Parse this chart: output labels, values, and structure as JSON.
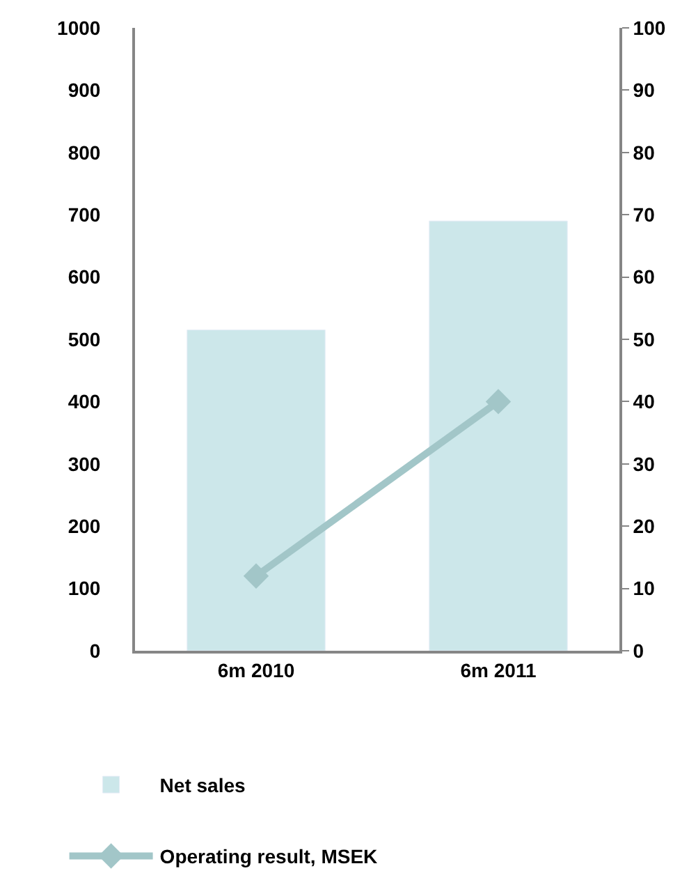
{
  "chart_data": {
    "type": "bar",
    "categories": [
      "6m 2010",
      "6m 2011"
    ],
    "series": [
      {
        "name": "Net sales",
        "color": "#cce7ea",
        "values": [
          515,
          690
        ]
      },
      {
        "name": "Operating result, MSEK",
        "type": "line",
        "axis": "y2",
        "color": "#a2c6c8",
        "marker": "diamond",
        "line_style": "solid",
        "values": [
          12,
          40
        ]
      }
    ],
    "ylim": [
      0,
      1000
    ],
    "yticks": [
      0,
      100,
      200,
      300,
      400,
      500,
      600,
      700,
      800,
      900,
      1000
    ],
    "y2lim": [
      0,
      100
    ],
    "y2ticks": [
      0,
      10,
      20,
      30,
      40,
      50,
      60,
      70,
      80,
      90,
      100
    ],
    "legend": "bottom"
  }
}
